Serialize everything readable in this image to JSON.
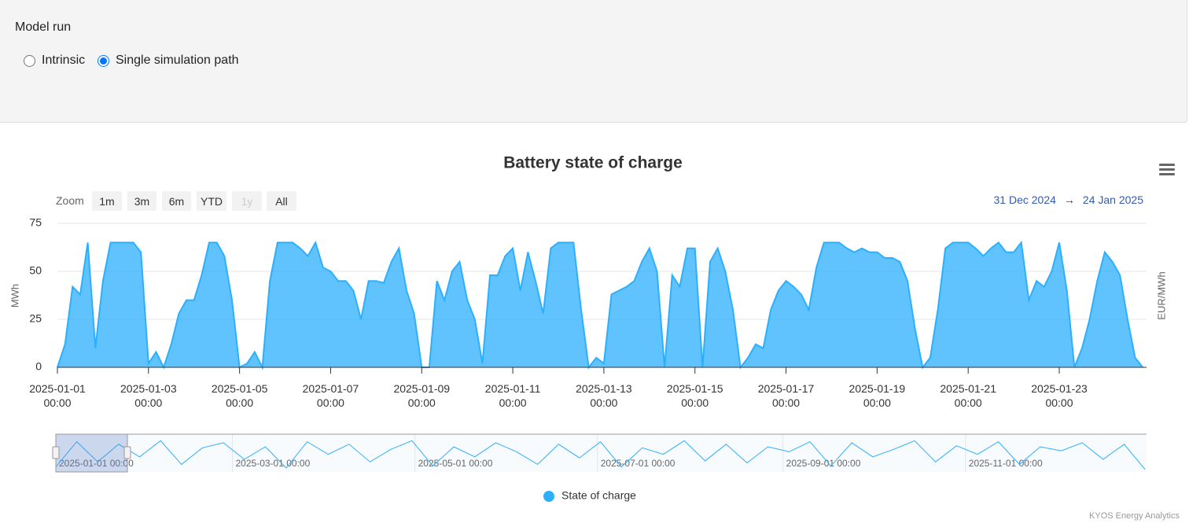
{
  "controls": {
    "title": "Model run",
    "options": [
      {
        "label": "Intrinsic",
        "selected": false
      },
      {
        "label": "Single simulation path",
        "selected": true
      }
    ]
  },
  "chart_data": {
    "type": "area",
    "title": "Battery state of charge",
    "range_selector": {
      "label": "Zoom",
      "buttons": [
        {
          "label": "1m",
          "enabled": true
        },
        {
          "label": "3m",
          "enabled": true
        },
        {
          "label": "6m",
          "enabled": true
        },
        {
          "label": "YTD",
          "enabled": true
        },
        {
          "label": "1y",
          "enabled": false
        },
        {
          "label": "All",
          "enabled": true
        }
      ]
    },
    "range_display": {
      "from": "31 Dec 2024",
      "arrow": "→",
      "to": "24 Jan 2025"
    },
    "y_label": "MWh",
    "y2_label": "EUR/MWh",
    "ylim": [
      0,
      75
    ],
    "yticks": [
      0,
      25,
      50,
      75
    ],
    "grid": true,
    "xlim": [
      "2025-01-01 00:00",
      "2025-01-24 22:00"
    ],
    "xticks": [
      "2025-01-01 00:00",
      "2025-01-03 00:00",
      "2025-01-05 00:00",
      "2025-01-07 00:00",
      "2025-01-09 00:00",
      "2025-01-11 00:00",
      "2025-01-13 00:00",
      "2025-01-15 00:00",
      "2025-01-17 00:00",
      "2025-01-19 00:00",
      "2025-01-21 00:00",
      "2025-01-23 00:00"
    ],
    "x": [
      "2025-01-01 00:00",
      "2025-01-01 04:00",
      "2025-01-01 08:00",
      "2025-01-01 12:00",
      "2025-01-01 16:00",
      "2025-01-01 20:00",
      "2025-01-02 00:00",
      "2025-01-02 04:00",
      "2025-01-02 08:00",
      "2025-01-02 12:00",
      "2025-01-02 16:00",
      "2025-01-02 20:00",
      "2025-01-03 00:00",
      "2025-01-03 04:00",
      "2025-01-03 08:00",
      "2025-01-03 12:00",
      "2025-01-03 16:00",
      "2025-01-03 20:00",
      "2025-01-04 00:00",
      "2025-01-04 04:00",
      "2025-01-04 08:00",
      "2025-01-04 12:00",
      "2025-01-04 16:00",
      "2025-01-04 20:00",
      "2025-01-05 00:00",
      "2025-01-05 04:00",
      "2025-01-05 08:00",
      "2025-01-05 12:00",
      "2025-01-05 16:00",
      "2025-01-05 20:00",
      "2025-01-06 00:00",
      "2025-01-06 04:00",
      "2025-01-06 08:00",
      "2025-01-06 12:00",
      "2025-01-06 16:00",
      "2025-01-06 20:00",
      "2025-01-07 00:00",
      "2025-01-07 04:00",
      "2025-01-07 08:00",
      "2025-01-07 12:00",
      "2025-01-07 16:00",
      "2025-01-07 20:00",
      "2025-01-08 00:00",
      "2025-01-08 04:00",
      "2025-01-08 08:00",
      "2025-01-08 12:00",
      "2025-01-08 16:00",
      "2025-01-08 20:00",
      "2025-01-09 00:00",
      "2025-01-09 04:00",
      "2025-01-09 08:00",
      "2025-01-09 12:00",
      "2025-01-09 16:00",
      "2025-01-09 20:00",
      "2025-01-10 00:00",
      "2025-01-10 04:00",
      "2025-01-10 08:00",
      "2025-01-10 12:00",
      "2025-01-10 16:00",
      "2025-01-10 20:00",
      "2025-01-11 00:00",
      "2025-01-11 04:00",
      "2025-01-11 08:00",
      "2025-01-11 12:00",
      "2025-01-11 16:00",
      "2025-01-11 20:00",
      "2025-01-12 00:00",
      "2025-01-12 04:00",
      "2025-01-12 08:00",
      "2025-01-12 12:00",
      "2025-01-12 16:00",
      "2025-01-12 20:00",
      "2025-01-13 00:00",
      "2025-01-13 04:00",
      "2025-01-13 08:00",
      "2025-01-13 12:00",
      "2025-01-13 16:00",
      "2025-01-13 20:00",
      "2025-01-14 00:00",
      "2025-01-14 04:00",
      "2025-01-14 08:00",
      "2025-01-14 12:00",
      "2025-01-14 16:00",
      "2025-01-14 20:00",
      "2025-01-15 00:00",
      "2025-01-15 04:00",
      "2025-01-15 08:00",
      "2025-01-15 12:00",
      "2025-01-15 16:00",
      "2025-01-15 20:00",
      "2025-01-16 00:00",
      "2025-01-16 04:00",
      "2025-01-16 08:00",
      "2025-01-16 12:00",
      "2025-01-16 16:00",
      "2025-01-16 20:00",
      "2025-01-17 00:00",
      "2025-01-17 04:00",
      "2025-01-17 08:00",
      "2025-01-17 12:00",
      "2025-01-17 16:00",
      "2025-01-17 20:00",
      "2025-01-18 00:00",
      "2025-01-18 04:00",
      "2025-01-18 08:00",
      "2025-01-18 12:00",
      "2025-01-18 16:00",
      "2025-01-18 20:00",
      "2025-01-19 00:00",
      "2025-01-19 04:00",
      "2025-01-19 08:00",
      "2025-01-19 12:00",
      "2025-01-19 16:00",
      "2025-01-19 20:00",
      "2025-01-20 00:00",
      "2025-01-20 04:00",
      "2025-01-20 08:00",
      "2025-01-20 12:00",
      "2025-01-20 16:00",
      "2025-01-20 20:00",
      "2025-01-21 00:00",
      "2025-01-21 04:00",
      "2025-01-21 08:00",
      "2025-01-21 12:00",
      "2025-01-21 16:00",
      "2025-01-21 20:00",
      "2025-01-22 00:00",
      "2025-01-22 04:00",
      "2025-01-22 08:00",
      "2025-01-22 12:00",
      "2025-01-22 16:00",
      "2025-01-22 20:00",
      "2025-01-23 00:00",
      "2025-01-23 04:00",
      "2025-01-23 08:00",
      "2025-01-23 12:00",
      "2025-01-23 16:00",
      "2025-01-23 20:00",
      "2025-01-24 00:00",
      "2025-01-24 04:00",
      "2025-01-24 08:00",
      "2025-01-24 12:00",
      "2025-01-24 16:00",
      "2025-01-24 20:00"
    ],
    "series": [
      {
        "name": "State of charge",
        "color": "#2caffe",
        "values": [
          0,
          12,
          42,
          38,
          65,
          10,
          45,
          65,
          65,
          65,
          65,
          60,
          2,
          8,
          0,
          12,
          28,
          35,
          35,
          48,
          65,
          65,
          58,
          35,
          0,
          2,
          8,
          0,
          45,
          65,
          65,
          65,
          62,
          58,
          65,
          52,
          50,
          45,
          45,
          40,
          25,
          45,
          45,
          44,
          55,
          62,
          40,
          28,
          0,
          0,
          45,
          35,
          50,
          55,
          35,
          25,
          2,
          48,
          48,
          58,
          62,
          40,
          60,
          45,
          28,
          62,
          65,
          65,
          65,
          30,
          0,
          5,
          2,
          38,
          40,
          42,
          45,
          55,
          62,
          50,
          0,
          48,
          42,
          62,
          62,
          0,
          55,
          62,
          50,
          30,
          0,
          5,
          12,
          10,
          30,
          40,
          45,
          42,
          38,
          30,
          52,
          65,
          65,
          65,
          62,
          60,
          62,
          60,
          60,
          57,
          57,
          55,
          45,
          20,
          0,
          5,
          30,
          62,
          65,
          65,
          65,
          62,
          58,
          62,
          65,
          60,
          60,
          65,
          35,
          45,
          42,
          50,
          65,
          40,
          0,
          10,
          25,
          45,
          60,
          55,
          48,
          25,
          5,
          0
        ]
      }
    ],
    "navigator": {
      "xlim": [
        "2025-01-01 00:00",
        "2025-12-31 12:00"
      ],
      "xticks": [
        "2025-01-01 00:00",
        "2025-03-01 00:00",
        "2025-05-01 00:00",
        "2025-07-01 00:00",
        "2025-09-01 00:00",
        "2025-11-01 00:00"
      ],
      "x": [
        "2025-01-01 00:00",
        "2025-01-08 00:00",
        "2025-01-15 00:00",
        "2025-01-22 00:00",
        "2025-01-29 00:00",
        "2025-02-05 00:00",
        "2025-02-12 00:00",
        "2025-02-19 00:00",
        "2025-02-26 00:00",
        "2025-03-05 00:00",
        "2025-03-12 00:00",
        "2025-03-19 00:00",
        "2025-03-26 00:00",
        "2025-04-02 00:00",
        "2025-04-09 00:00",
        "2025-04-16 00:00",
        "2025-04-23 00:00",
        "2025-04-30 00:00",
        "2025-05-07 00:00",
        "2025-05-14 00:00",
        "2025-05-21 00:00",
        "2025-05-28 00:00",
        "2025-06-04 00:00",
        "2025-06-11 00:00",
        "2025-06-18 00:00",
        "2025-06-25 00:00",
        "2025-07-02 00:00",
        "2025-07-09 00:00",
        "2025-07-16 00:00",
        "2025-07-23 00:00",
        "2025-07-30 00:00",
        "2025-08-06 00:00",
        "2025-08-13 00:00",
        "2025-08-20 00:00",
        "2025-08-27 00:00",
        "2025-09-03 00:00",
        "2025-09-10 00:00",
        "2025-09-17 00:00",
        "2025-09-24 00:00",
        "2025-10-01 00:00",
        "2025-10-08 00:00",
        "2025-10-15 00:00",
        "2025-10-22 00:00",
        "2025-10-29 00:00",
        "2025-11-05 00:00",
        "2025-11-12 00:00",
        "2025-11-19 00:00",
        "2025-11-26 00:00",
        "2025-12-03 00:00",
        "2025-12-10 00:00",
        "2025-12-17 00:00",
        "2025-12-24 00:00",
        "2025-12-31 00:00"
      ],
      "values": [
        10,
        60,
        20,
        55,
        30,
        62,
        15,
        48,
        58,
        25,
        50,
        8,
        60,
        35,
        55,
        20,
        45,
        62,
        12,
        50,
        30,
        58,
        40,
        15,
        55,
        28,
        60,
        10,
        48,
        35,
        62,
        22,
        55,
        18,
        50,
        40,
        60,
        12,
        58,
        30,
        45,
        62,
        20,
        52,
        35,
        60,
        15,
        50,
        42,
        58,
        25,
        55,
        5
      ]
    }
  },
  "credits": "KYOS Energy Analytics"
}
